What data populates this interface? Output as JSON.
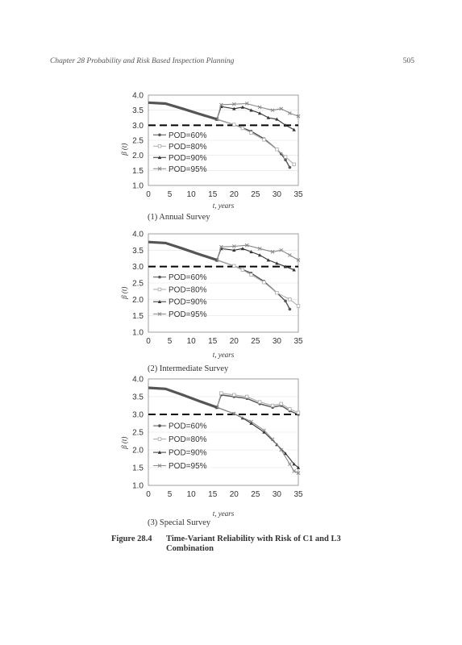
{
  "header": {
    "title": "Chapter 28 Probability and Risk Based Inspection Planning",
    "page": "505"
  },
  "figure": {
    "label": "Figure 28.4",
    "title": "Time-Variant Reliability with Risk of C1 and L3 Combination"
  },
  "colors": {
    "series": [
      "#555555",
      "#aaaaaa",
      "#333333",
      "#888888"
    ],
    "threshold": "#000000"
  },
  "chart_data": [
    {
      "type": "line",
      "caption": "(1)  Annual Survey",
      "xlabel": "t, years",
      "ylabel": "β (t)",
      "xlim": [
        0,
        35
      ],
      "ylim": [
        1.0,
        4.0
      ],
      "xticks": [
        0,
        5,
        10,
        15,
        20,
        25,
        30,
        35
      ],
      "yticks": [
        1.0,
        1.5,
        2.0,
        2.5,
        3.0,
        3.5,
        4.0
      ],
      "threshold": 3.0,
      "legend_position": "left",
      "series": [
        {
          "name": "POD=60%",
          "x": [
            0,
            4,
            8,
            12,
            16,
            20,
            24,
            27,
            30,
            31,
            32,
            33
          ],
          "y": [
            3.75,
            3.72,
            3.55,
            3.37,
            3.2,
            3.02,
            2.8,
            2.55,
            2.2,
            2.05,
            1.85,
            1.6
          ]
        },
        {
          "name": "POD=80%",
          "x": [
            0,
            4,
            8,
            12,
            16,
            20,
            22,
            24,
            27,
            30,
            32,
            34
          ],
          "y": [
            3.75,
            3.72,
            3.55,
            3.37,
            3.2,
            3.02,
            2.9,
            2.75,
            2.52,
            2.2,
            1.95,
            1.7
          ]
        },
        {
          "name": "POD=90%",
          "x": [
            0,
            4,
            8,
            12,
            16,
            17,
            20,
            22,
            24,
            26,
            28,
            30,
            32,
            34
          ],
          "y": [
            3.75,
            3.72,
            3.55,
            3.37,
            3.2,
            3.62,
            3.55,
            3.6,
            3.5,
            3.4,
            3.25,
            3.2,
            3.0,
            2.85
          ]
        },
        {
          "name": "POD=95%",
          "x": [
            0,
            4,
            8,
            12,
            16,
            17,
            20,
            23,
            26,
            29,
            31,
            33,
            35
          ],
          "y": [
            3.75,
            3.72,
            3.55,
            3.37,
            3.2,
            3.68,
            3.7,
            3.72,
            3.6,
            3.5,
            3.55,
            3.4,
            3.3
          ]
        }
      ]
    },
    {
      "type": "line",
      "caption": "(2) Intermediate Survey",
      "xlabel": "t, years",
      "ylabel": "β (t)",
      "xlim": [
        0,
        35
      ],
      "ylim": [
        1.0,
        4.0
      ],
      "xticks": [
        0,
        5,
        10,
        15,
        20,
        25,
        30,
        35
      ],
      "yticks": [
        1.0,
        1.5,
        2.0,
        2.5,
        3.0,
        3.5,
        4.0
      ],
      "threshold": 3.0,
      "legend_position": "left",
      "series": [
        {
          "name": "POD=60%",
          "x": [
            0,
            4,
            8,
            12,
            16,
            20,
            24,
            27,
            30,
            32,
            33
          ],
          "y": [
            3.75,
            3.72,
            3.55,
            3.37,
            3.2,
            3.02,
            2.8,
            2.55,
            2.2,
            1.95,
            1.7
          ]
        },
        {
          "name": "POD=80%",
          "x": [
            0,
            4,
            8,
            12,
            16,
            20,
            22,
            24,
            27,
            30,
            33,
            35
          ],
          "y": [
            3.75,
            3.72,
            3.55,
            3.37,
            3.2,
            3.02,
            2.9,
            2.75,
            2.52,
            2.2,
            2.0,
            1.8
          ]
        },
        {
          "name": "POD=90%",
          "x": [
            0,
            4,
            8,
            12,
            16,
            17,
            20,
            22,
            24,
            26,
            28,
            30,
            32,
            34
          ],
          "y": [
            3.75,
            3.72,
            3.55,
            3.37,
            3.2,
            3.55,
            3.5,
            3.55,
            3.45,
            3.35,
            3.2,
            3.1,
            3.0,
            2.9
          ]
        },
        {
          "name": "POD=95%",
          "x": [
            0,
            4,
            8,
            12,
            16,
            17,
            20,
            23,
            26,
            29,
            31,
            33,
            35
          ],
          "y": [
            3.75,
            3.72,
            3.55,
            3.37,
            3.2,
            3.6,
            3.62,
            3.65,
            3.55,
            3.45,
            3.5,
            3.35,
            3.2
          ]
        }
      ]
    },
    {
      "type": "line",
      "caption": "(3) Special Survey",
      "xlabel": "t, years",
      "ylabel": "β (t)",
      "xlim": [
        0,
        35
      ],
      "ylim": [
        1.0,
        4.0
      ],
      "xticks": [
        0,
        5,
        10,
        15,
        20,
        25,
        30,
        35
      ],
      "yticks": [
        1.0,
        1.5,
        2.0,
        2.5,
        3.0,
        3.5,
        4.0
      ],
      "threshold": 3.0,
      "legend_position": "left",
      "series": [
        {
          "name": "POD=60%",
          "x": [
            0,
            4,
            8,
            12,
            16,
            17,
            20,
            23,
            26,
            29,
            31,
            33,
            35
          ],
          "y": [
            3.75,
            3.72,
            3.55,
            3.37,
            3.2,
            3.55,
            3.5,
            3.45,
            3.3,
            3.2,
            3.25,
            3.1,
            3.0
          ]
        },
        {
          "name": "POD=80%",
          "x": [
            0,
            4,
            8,
            12,
            16,
            17,
            20,
            23,
            26,
            29,
            31,
            33,
            35
          ],
          "y": [
            3.75,
            3.72,
            3.55,
            3.37,
            3.2,
            3.6,
            3.55,
            3.5,
            3.35,
            3.25,
            3.3,
            3.15,
            3.05
          ]
        },
        {
          "name": "POD=90%",
          "x": [
            0,
            4,
            8,
            12,
            16,
            20,
            22,
            24,
            27,
            30,
            32,
            34,
            35
          ],
          "y": [
            3.75,
            3.72,
            3.55,
            3.37,
            3.2,
            3.02,
            2.9,
            2.75,
            2.5,
            2.15,
            1.9,
            1.6,
            1.5
          ]
        },
        {
          "name": "POD=95%",
          "x": [
            0,
            4,
            8,
            12,
            16,
            20,
            24,
            27,
            29,
            31,
            33,
            34,
            35
          ],
          "y": [
            3.75,
            3.72,
            3.55,
            3.37,
            3.2,
            3.02,
            2.8,
            2.55,
            2.3,
            2.0,
            1.6,
            1.4,
            1.35
          ]
        }
      ]
    }
  ]
}
